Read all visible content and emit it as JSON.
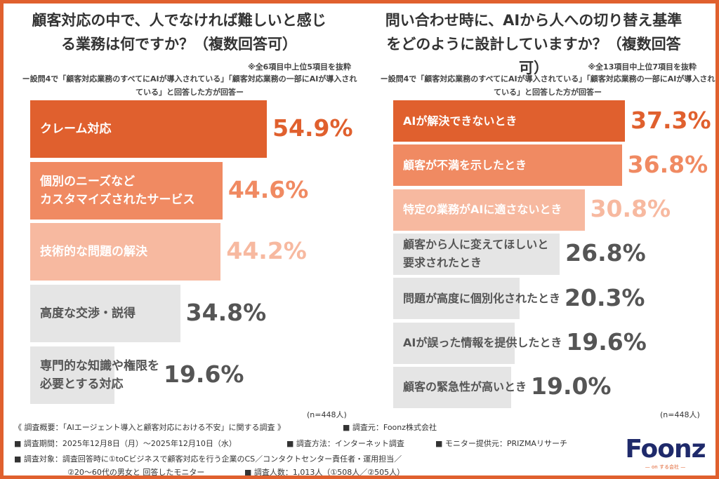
{
  "colors": {
    "accent": "#e0602e",
    "mid": "#f08a62",
    "light": "#f7b9a0",
    "gray": "#e5e5e5"
  },
  "chart_data": [
    {
      "type": "bar",
      "orientation": "horizontal",
      "title": "顧客対応の中で、人でなければ難しいと感じる業務は何ですか？（複数回答可）",
      "note": "※全6項目中上位5項目を抜粋",
      "subtitle": "ー設問4で「顧客対応業務のすべてにAIが導入されている」「顧客対応業務の一部にAIが導入されている」と回答した方が回答ー",
      "categories": [
        "クレーム対応",
        "個別のニーズなど\nカスタマイズされたサービス",
        "技術的な問題の解決",
        "高度な交渉・説得",
        "専門的な知識や権限を\n必要とする対応"
      ],
      "values": [
        54.9,
        44.6,
        44.2,
        34.8,
        19.6
      ],
      "value_labels": [
        "54.9%",
        "44.6%",
        "44.2%",
        "34.8%",
        "19.6%"
      ],
      "n": "(n=448人)"
    },
    {
      "type": "bar",
      "orientation": "horizontal",
      "title": "問い合わせ時に、AIから人への切り替え基準をどのように設計していますか？（複数回答可）",
      "note": "※全13項目中上位7項目を抜粋",
      "subtitle": "ー設問4で「顧客対応業務のすべてにAIが導入されている」「顧客対応業務の一部にAIが導入されている」と回答した方が回答ー",
      "categories": [
        "AIが解決できないとき",
        "顧客が不満を示したとき",
        "特定の業務がAIに適さないとき",
        "顧客から人に変えてほしいと\n要求されたとき",
        "問題が高度に個別化されたとき",
        "AIが誤った情報を提供したとき",
        "顧客の緊急性が高いとき"
      ],
      "values": [
        37.3,
        36.8,
        30.8,
        26.8,
        20.3,
        19.6,
        19.0
      ],
      "value_labels": [
        "37.3%",
        "36.8%",
        "30.8%",
        "26.8%",
        "20.3%",
        "19.6%",
        "19.0%"
      ],
      "n": "(n=448人)"
    }
  ],
  "footer": {
    "line1a": "《 調査概要：「AIエージェント導入と顧客対応における不安」に関する調査 》",
    "line1b": "■ 調査元：Foonz株式会社",
    "line2a": "■ 調査期間：2025年12月8日（月）～2025年12月10日（水）",
    "line2b": "■ 調査方法：インターネット調査",
    "line2c": "■ モニター提供元：PRIZMAリサーチ",
    "line3": "■ 調査対象：調査回答時に①toCビジネスで顧客対応を行う企業のCS／コンタクトセンター責任者・運用担当／",
    "line4a": "②20～60代の男女と 回答したモニター",
    "line4b": "■ 調査人数：1,013人（①508人／②505人）"
  },
  "logo": {
    "name": "Foonz",
    "tagline": "— on する会社 —"
  }
}
